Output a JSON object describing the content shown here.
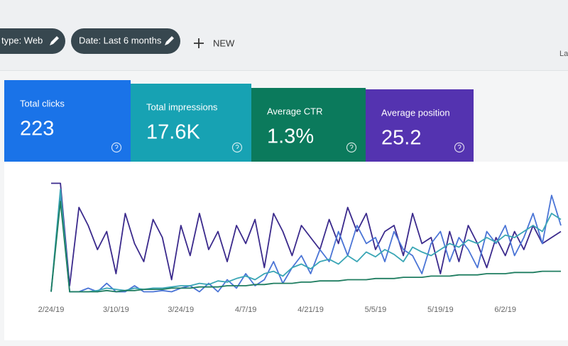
{
  "toolbar": {
    "filters": [
      "type: Web",
      "Date: Last 6 months"
    ],
    "action": "NEW",
    "right_text": "La"
  },
  "cards": [
    {
      "label": "Total clicks",
      "value": "223",
      "color": "#1a73e8"
    },
    {
      "label": "Total impressions",
      "value": "17.6K",
      "color": "#17a2b3"
    },
    {
      "label": "Average CTR",
      "value": "1.3%",
      "color": "#0b7a5c"
    },
    {
      "label": "Average position",
      "value": "25.2",
      "color": "#5433b0"
    }
  ],
  "chart_data": {
    "type": "line",
    "categories": [
      "2/24/19",
      null,
      null,
      null,
      null,
      null,
      null,
      "3/10/19",
      null,
      null,
      null,
      null,
      null,
      null,
      "3/24/19",
      null,
      null,
      null,
      null,
      null,
      null,
      "4/7/19",
      null,
      null,
      null,
      null,
      null,
      null,
      "4/21/19",
      null,
      null,
      null,
      null,
      null,
      null,
      "5/5/19",
      null,
      null,
      null,
      null,
      null,
      null,
      "5/19/19",
      null,
      null,
      null,
      null,
      null,
      null,
      "6/2/19",
      null,
      null,
      null,
      null,
      null,
      null
    ],
    "ylim": [
      0,
      100
    ],
    "series": [
      {
        "name": "Average position",
        "color": "#3b2a8c",
        "values": [
          95,
          95,
          10,
          75,
          60,
          40,
          55,
          20,
          70,
          45,
          30,
          65,
          50,
          15,
          60,
          35,
          70,
          40,
          55,
          30,
          60,
          45,
          65,
          25,
          70,
          55,
          35,
          60,
          50,
          40,
          65,
          45,
          75,
          55,
          70,
          40,
          55,
          60,
          35,
          70,
          45,
          50,
          20,
          55,
          30,
          60,
          45,
          25,
          50,
          35,
          55,
          40,
          60,
          45,
          50,
          55
        ]
      },
      {
        "name": "Total clicks",
        "color": "#4a74d6",
        "values": [
          5,
          85,
          5,
          5,
          8,
          5,
          12,
          5,
          5,
          10,
          5,
          5,
          6,
          5,
          8,
          10,
          5,
          12,
          5,
          15,
          8,
          20,
          10,
          15,
          30,
          12,
          25,
          35,
          20,
          40,
          30,
          55,
          35,
          60,
          45,
          50,
          30,
          55,
          40,
          35,
          20,
          45,
          55,
          30,
          50,
          40,
          25,
          55,
          45,
          60,
          35,
          50,
          70,
          45,
          85,
          60
        ]
      },
      {
        "name": "Total impressions",
        "color": "#3aa6b5",
        "values": [
          5,
          90,
          5,
          5,
          5,
          6,
          8,
          7,
          6,
          8,
          7,
          8,
          8,
          9,
          10,
          10,
          12,
          11,
          14,
          13,
          16,
          18,
          15,
          20,
          22,
          18,
          25,
          28,
          24,
          30,
          32,
          28,
          35,
          30,
          38,
          34,
          40,
          36,
          30,
          42,
          38,
          35,
          40,
          45,
          42,
          48,
          45,
          50,
          46,
          52,
          50,
          55,
          60,
          55,
          70,
          65
        ]
      },
      {
        "name": "Average CTR",
        "color": "#1f7d60",
        "values": [
          5,
          80,
          5,
          5,
          5,
          5,
          6,
          5,
          6,
          6,
          7,
          7,
          7,
          8,
          8,
          8,
          9,
          9,
          9,
          10,
          10,
          10,
          11,
          11,
          12,
          12,
          12,
          13,
          13,
          14,
          14,
          14,
          15,
          15,
          15,
          16,
          16,
          16,
          17,
          17,
          17,
          18,
          18,
          18,
          19,
          19,
          19,
          20,
          20,
          20,
          21,
          21,
          21,
          22,
          22,
          22
        ]
      }
    ]
  }
}
